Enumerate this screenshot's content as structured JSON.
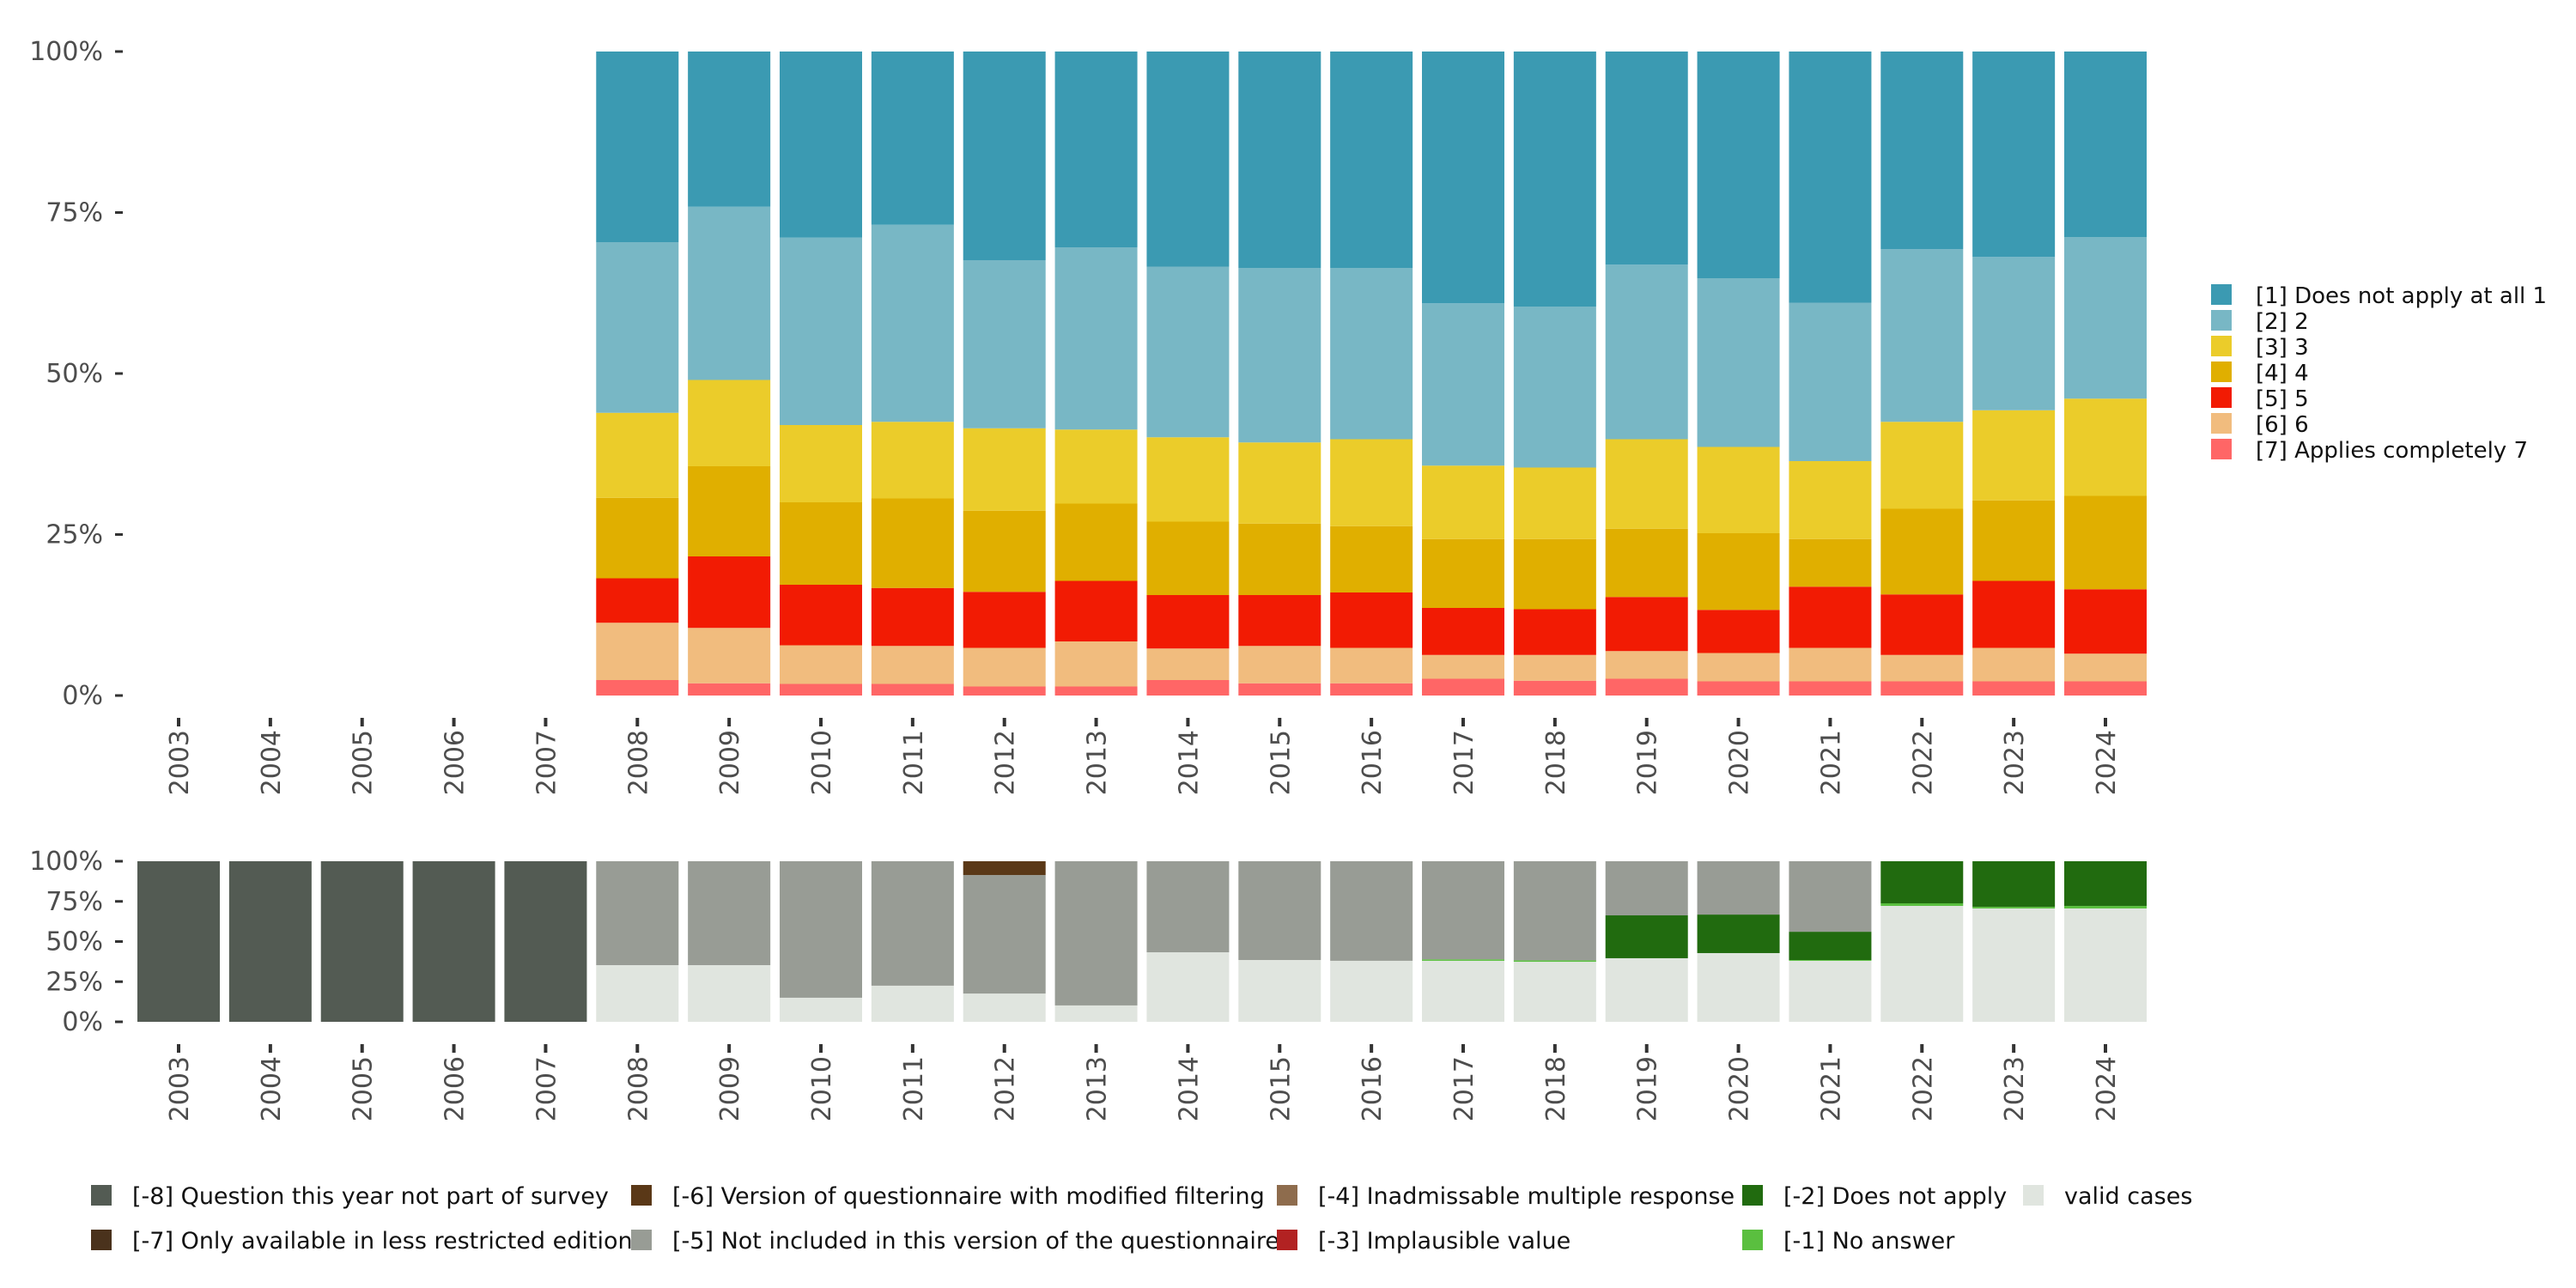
{
  "chart_data": [
    {
      "type": "bar",
      "stacked": true,
      "title": "",
      "xlabel": "",
      "ylabel": "",
      "ylim": [
        0,
        100
      ],
      "yticks": [
        "0%",
        "25%",
        "50%",
        "75%",
        "100%"
      ],
      "categories": [
        "2003",
        "2004",
        "2005",
        "2006",
        "2007",
        "2008",
        "2009",
        "2010",
        "2011",
        "2012",
        "2013",
        "2014",
        "2015",
        "2016",
        "2017",
        "2018",
        "2019",
        "2020",
        "2021",
        "2022",
        "2023",
        "2024"
      ],
      "legend_position": "right",
      "series": [
        {
          "name": "[7] Applies completely 7",
          "color": "#ff6666",
          "values": [
            0,
            0,
            0,
            0,
            0,
            2.4,
            1.9,
            1.8,
            1.8,
            1.4,
            1.4,
            2.4,
            1.9,
            1.9,
            2.6,
            2.3,
            2.6,
            2.2,
            2.2,
            2.2,
            2.2,
            2.2
          ]
        },
        {
          "name": "[6] 6",
          "color": "#f1bc7e",
          "values": [
            0,
            0,
            0,
            0,
            0,
            8.9,
            8.6,
            6.0,
            5.9,
            6.0,
            7.0,
            4.9,
            5.8,
            5.5,
            3.7,
            4.0,
            4.3,
            4.4,
            5.2,
            4.1,
            5.2,
            4.3
          ]
        },
        {
          "name": "[5] 5",
          "color": "#f21b03",
          "values": [
            0,
            0,
            0,
            0,
            0,
            6.9,
            11.1,
            9.4,
            9.0,
            8.7,
            9.4,
            8.3,
            7.9,
            8.6,
            7.3,
            7.1,
            8.4,
            6.7,
            9.5,
            9.4,
            10.4,
            10.0
          ]
        },
        {
          "name": "[4] 4",
          "color": "#e0af00",
          "values": [
            0,
            0,
            0,
            0,
            0,
            12.5,
            14.0,
            12.8,
            13.9,
            12.6,
            12.0,
            11.4,
            11.1,
            10.3,
            10.7,
            10.9,
            10.6,
            11.9,
            7.4,
            13.3,
            12.5,
            14.5
          ]
        },
        {
          "name": "[3] 3",
          "color": "#ebcc2a",
          "values": [
            0,
            0,
            0,
            0,
            0,
            13.2,
            13.4,
            12.0,
            11.9,
            12.8,
            11.5,
            13.1,
            12.6,
            13.5,
            11.4,
            11.1,
            13.9,
            13.4,
            12.1,
            13.5,
            14.0,
            15.1
          ]
        },
        {
          "name": "[2] 2",
          "color": "#78b7c5",
          "values": [
            0,
            0,
            0,
            0,
            0,
            26.5,
            26.9,
            29.1,
            30.6,
            26.1,
            28.3,
            26.5,
            27.1,
            26.6,
            25.2,
            25.0,
            27.1,
            26.2,
            24.6,
            26.8,
            23.8,
            25.1
          ]
        },
        {
          "name": "[1] Does not apply at all 1",
          "color": "#3b9ab2",
          "values": [
            0,
            0,
            0,
            0,
            0,
            29.6,
            24.1,
            28.9,
            26.9,
            32.4,
            30.4,
            33.4,
            33.6,
            33.6,
            39.1,
            39.6,
            33.1,
            35.2,
            39.0,
            30.7,
            31.9,
            28.8
          ]
        }
      ]
    },
    {
      "type": "bar",
      "stacked": true,
      "title": "",
      "xlabel": "",
      "ylabel": "",
      "ylim": [
        0,
        100
      ],
      "yticks": [
        "0%",
        "25%",
        "50%",
        "75%",
        "100%"
      ],
      "categories": [
        "2003",
        "2004",
        "2005",
        "2006",
        "2007",
        "2008",
        "2009",
        "2010",
        "2011",
        "2012",
        "2013",
        "2014",
        "2015",
        "2016",
        "2017",
        "2018",
        "2019",
        "2020",
        "2021",
        "2022",
        "2023",
        "2024"
      ],
      "legend_position": "bottom",
      "series": [
        {
          "name": "valid cases",
          "color": "#e0e5df",
          "values": [
            0,
            0,
            0,
            0,
            0,
            35.3,
            35.3,
            15.0,
            22.5,
            17.6,
            10.2,
            43.3,
            38.5,
            38.0,
            38.0,
            37.4,
            39.6,
            42.8,
            38.0,
            72.2,
            70.6,
            70.6
          ]
        },
        {
          "name": "[-1] No answer",
          "color": "#5abf3f",
          "values": [
            0,
            0,
            0,
            0,
            0,
            0,
            0,
            0,
            0,
            0,
            0,
            0,
            0,
            0,
            0.9,
            0.9,
            0,
            0,
            0.5,
            1.6,
            1.0,
            1.6
          ]
        },
        {
          "name": "[-2] Does not apply",
          "color": "#216b0f",
          "values": [
            0,
            0,
            0,
            0,
            0,
            0,
            0,
            0,
            0,
            0,
            0,
            0,
            0,
            0,
            0,
            0,
            26.7,
            24.0,
            17.6,
            26.2,
            28.4,
            27.8
          ]
        },
        {
          "name": "[-3] Implausible value",
          "color": "#b22222",
          "values": [
            0,
            0,
            0,
            0,
            0,
            0,
            0,
            0,
            0,
            0,
            0,
            0,
            0,
            0,
            0,
            0,
            0,
            0,
            0,
            0,
            0,
            0
          ]
        },
        {
          "name": "[-4] Inadmissable multiple response",
          "color": "#8e6c4d",
          "values": [
            0,
            0,
            0,
            0,
            0,
            0,
            0,
            0,
            0,
            0,
            0,
            0,
            0,
            0,
            0,
            0,
            0,
            0,
            0,
            0,
            0,
            0
          ]
        },
        {
          "name": "[-5] Not included in this version of the questionnaire",
          "color": "#989c95",
          "values": [
            0,
            0,
            0,
            0,
            0,
            64.7,
            64.7,
            85.0,
            77.5,
            73.8,
            89.8,
            56.7,
            61.5,
            62.0,
            61.1,
            61.7,
            33.7,
            33.2,
            43.9,
            0,
            0,
            0
          ]
        },
        {
          "name": "[-6] Version of questionnaire with modified filtering",
          "color": "#5a3817",
          "values": [
            0,
            0,
            0,
            0,
            0,
            0,
            0,
            0,
            0,
            8.6,
            0,
            0,
            0,
            0,
            0,
            0,
            0,
            0,
            0,
            0,
            0,
            0
          ]
        },
        {
          "name": "[-7] Only available in less restricted edition",
          "color": "#4a321c",
          "values": [
            0,
            0,
            0,
            0,
            0,
            0,
            0,
            0,
            0,
            0,
            0,
            0,
            0,
            0,
            0,
            0,
            0,
            0,
            0,
            0,
            0,
            0
          ]
        },
        {
          "name": "[-8] Question this year not part of survey",
          "color": "#535b53",
          "values": [
            100,
            100,
            100,
            100,
            100,
            0,
            0,
            0,
            0,
            0,
            0,
            0,
            0,
            0,
            0,
            0,
            0,
            0,
            0,
            0,
            0,
            0
          ]
        }
      ],
      "legend_order": [
        "[-8] Question this year not part of survey",
        "[-7] Only available in less restricted edition",
        "[-6] Version of questionnaire with modified filtering",
        "[-5] Not included in this version of the questionnaire",
        "[-4] Inadmissable multiple response",
        "[-3] Implausible value",
        "[-2] Does not apply",
        "[-1] No answer",
        "valid cases"
      ]
    }
  ]
}
